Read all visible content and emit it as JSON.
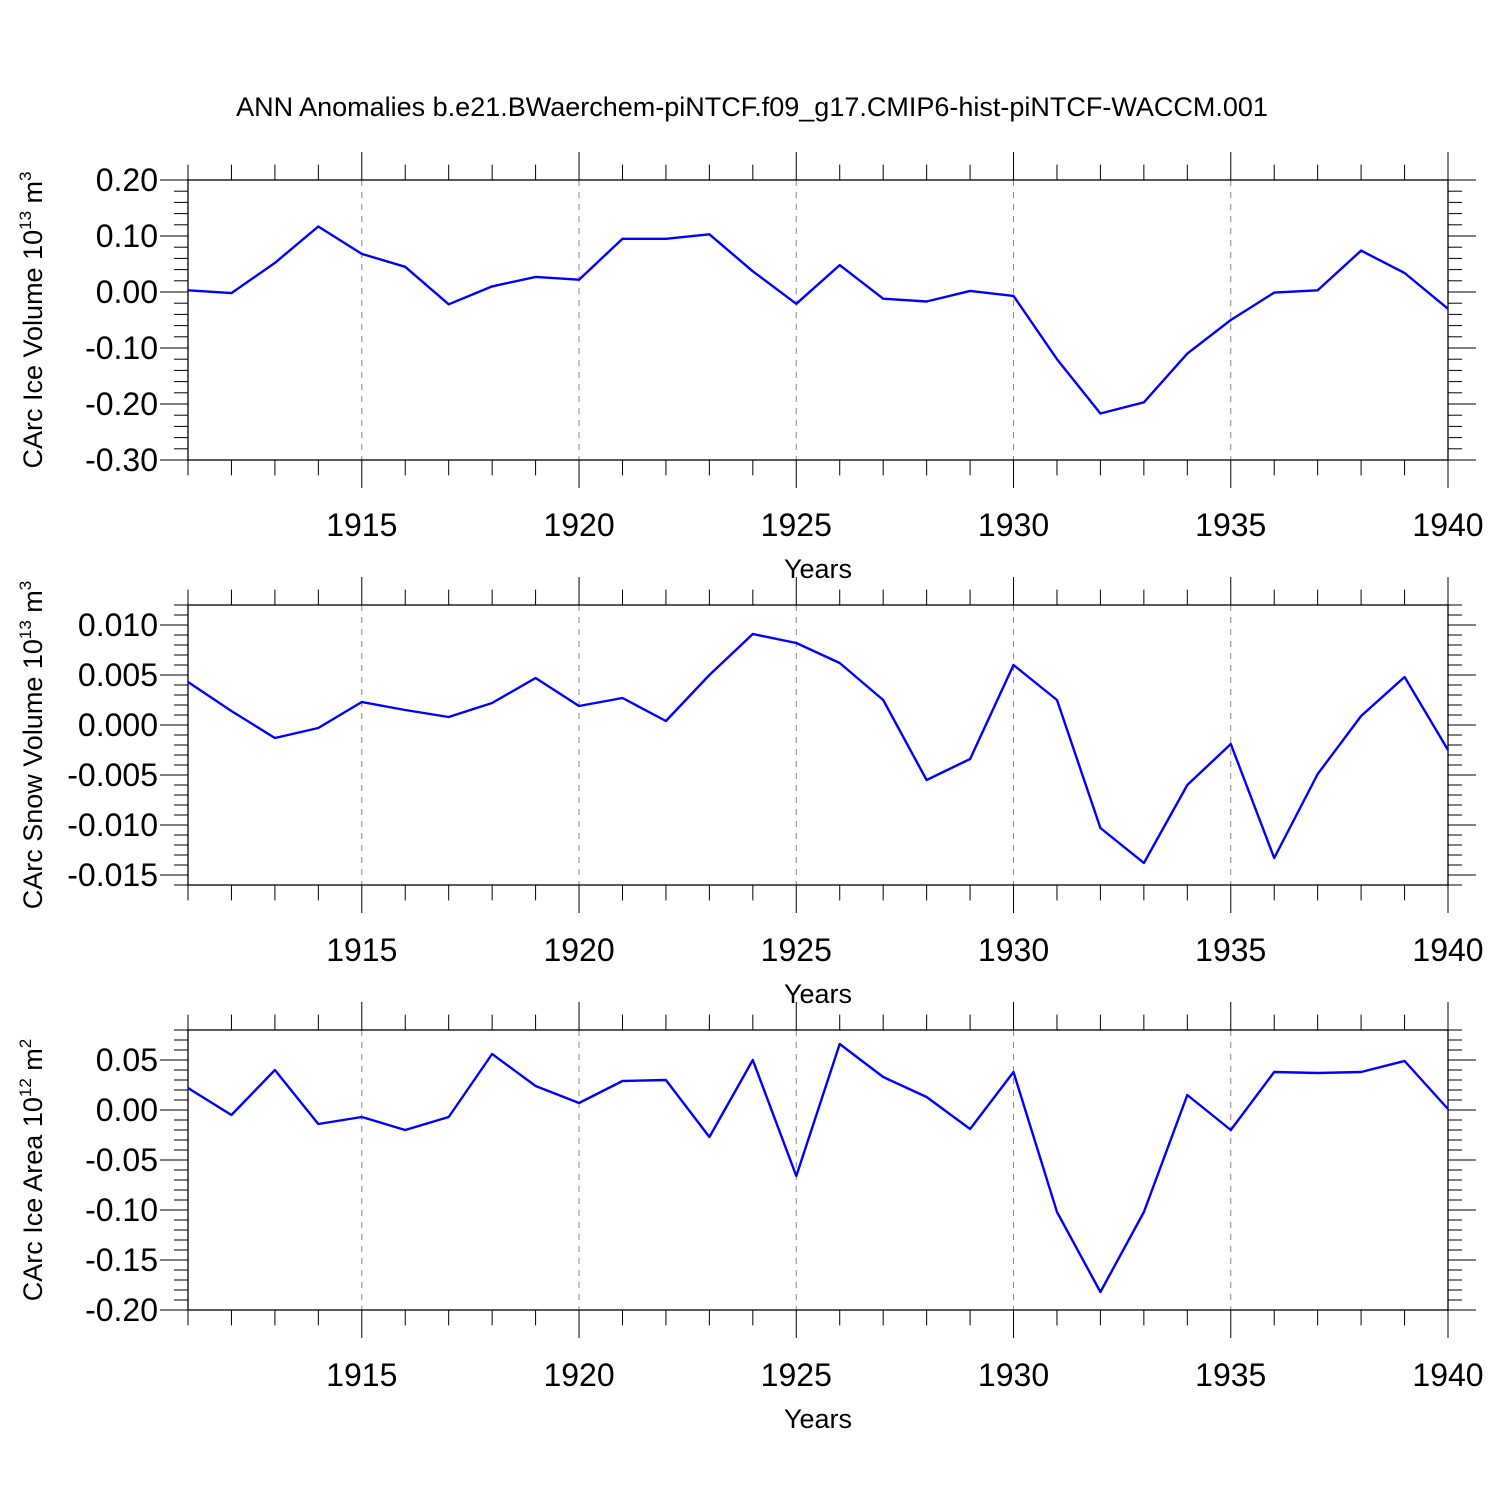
{
  "figure": {
    "title": "ANN Anomalies b.e21.BWaerchem-piNTCF.f09_g17.CMIP6-hist-piNTCF-WACCM.001",
    "line_color": "#0000ff"
  },
  "chart_data": [
    {
      "type": "line",
      "title": "",
      "xlabel": "Years",
      "ylabel_base": "CArc Ice Volume 10",
      "ylabel_exp": "13",
      "ylabel_unit": " m",
      "ylabel_unit_exp": "3",
      "xlim": [
        1911,
        1940
      ],
      "ylim": [
        -0.3,
        0.2
      ],
      "x_ticks": [
        1915,
        1920,
        1925,
        1930,
        1935,
        1940
      ],
      "x_tick_labels": [
        "1915",
        "1920",
        "1925",
        "1930",
        "1935",
        "1940"
      ],
      "y_ticks": [
        0.2,
        0.1,
        0.0,
        -0.1,
        -0.2,
        -0.3
      ],
      "y_tick_labels": [
        "0.20",
        "0.10",
        "0.00",
        "-0.10",
        "-0.20",
        "-0.30"
      ],
      "grid": "vertical-dashed",
      "series": [
        {
          "name": "CArc Ice Volume",
          "x": [
            1911,
            1912,
            1913,
            1914,
            1915,
            1916,
            1917,
            1918,
            1919,
            1920,
            1921,
            1922,
            1923,
            1924,
            1925,
            1926,
            1927,
            1928,
            1929,
            1930,
            1931,
            1932,
            1933,
            1934,
            1935,
            1936,
            1937,
            1938,
            1939,
            1940
          ],
          "values": [
            0.003,
            -0.002,
            0.052,
            0.117,
            0.068,
            0.045,
            -0.022,
            0.01,
            0.027,
            0.022,
            0.095,
            0.095,
            0.103,
            0.037,
            -0.021,
            0.048,
            -0.012,
            -0.017,
            0.002,
            -0.007,
            -0.12,
            -0.217,
            -0.197,
            -0.11,
            -0.05,
            -0.001,
            0.003,
            0.074,
            0.034,
            -0.03
          ]
        }
      ]
    },
    {
      "type": "line",
      "title": "",
      "xlabel": "Years",
      "ylabel_base": "CArc Snow Volume 10",
      "ylabel_exp": "13",
      "ylabel_unit": " m",
      "ylabel_unit_exp": "3",
      "xlim": [
        1911,
        1940
      ],
      "ylim": [
        -0.016,
        0.012
      ],
      "x_ticks": [
        1915,
        1920,
        1925,
        1930,
        1935,
        1940
      ],
      "x_tick_labels": [
        "1915",
        "1920",
        "1925",
        "1930",
        "1935",
        "1940"
      ],
      "y_ticks": [
        0.01,
        0.005,
        0.0,
        -0.005,
        -0.01,
        -0.015
      ],
      "y_tick_labels": [
        "0.010",
        "0.005",
        "0.000",
        "-0.005",
        "-0.010",
        "-0.015"
      ],
      "grid": "vertical-dashed",
      "series": [
        {
          "name": "CArc Snow Volume",
          "x": [
            1911,
            1912,
            1913,
            1914,
            1915,
            1916,
            1917,
            1918,
            1919,
            1920,
            1921,
            1922,
            1923,
            1924,
            1925,
            1926,
            1927,
            1928,
            1929,
            1930,
            1931,
            1932,
            1933,
            1934,
            1935,
            1936,
            1937,
            1938,
            1939,
            1940
          ],
          "values": [
            0.0043,
            0.0014,
            -0.0013,
            -0.0003,
            0.0023,
            0.0015,
            0.0008,
            0.0022,
            0.0047,
            0.0019,
            0.0027,
            0.0004,
            0.005,
            0.0091,
            0.0082,
            0.0062,
            0.0025,
            -0.0055,
            -0.0034,
            0.006,
            0.0025,
            -0.0103,
            -0.0138,
            -0.006,
            -0.0019,
            -0.0133,
            -0.0049,
            0.0009,
            0.0048,
            -0.0025
          ]
        }
      ]
    },
    {
      "type": "line",
      "title": "",
      "xlabel": "Years",
      "ylabel_base": "CArc Ice Area 10",
      "ylabel_exp": "12",
      "ylabel_unit": " m",
      "ylabel_unit_exp": "2",
      "xlim": [
        1911,
        1940
      ],
      "ylim": [
        -0.2,
        0.08
      ],
      "x_ticks": [
        1915,
        1920,
        1925,
        1930,
        1935,
        1940
      ],
      "x_tick_labels": [
        "1915",
        "1920",
        "1925",
        "1930",
        "1935",
        "1940"
      ],
      "y_ticks": [
        0.05,
        0.0,
        -0.05,
        -0.1,
        -0.15,
        -0.2
      ],
      "y_tick_labels": [
        "0.05",
        "0.00",
        "-0.05",
        "-0.10",
        "-0.15",
        "-0.20"
      ],
      "grid": "vertical-dashed",
      "series": [
        {
          "name": "CArc Ice Area",
          "x": [
            1911,
            1912,
            1913,
            1914,
            1915,
            1916,
            1917,
            1918,
            1919,
            1920,
            1921,
            1922,
            1923,
            1924,
            1925,
            1926,
            1927,
            1928,
            1929,
            1930,
            1931,
            1932,
            1933,
            1934,
            1935,
            1936,
            1937,
            1938,
            1939,
            1940
          ],
          "values": [
            0.022,
            -0.005,
            0.04,
            -0.014,
            -0.007,
            -0.02,
            -0.007,
            0.056,
            0.024,
            0.007,
            0.029,
            0.03,
            -0.027,
            0.05,
            -0.066,
            0.066,
            0.033,
            0.013,
            -0.019,
            0.038,
            -0.102,
            -0.182,
            -0.102,
            0.015,
            -0.02,
            0.038,
            0.037,
            0.038,
            0.049,
            0.001
          ]
        }
      ]
    }
  ]
}
